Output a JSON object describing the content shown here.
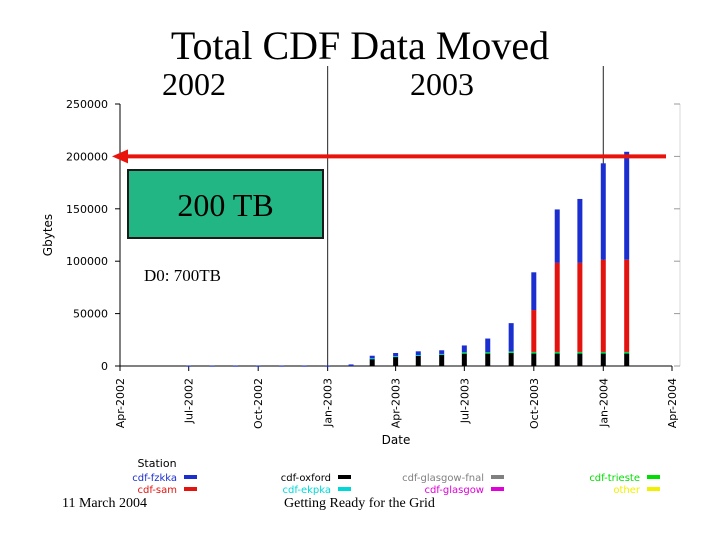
{
  "slide": {
    "title": "Total CDF Data Moved",
    "year_left": "2002",
    "year_right": "2003",
    "box_label": "200 TB",
    "d0_note": "D0: 700TB",
    "footer_date": "11 March 2004",
    "footer_title": "Getting Ready for the Grid",
    "arrow_color": "#e8140c",
    "box_color": "#23b685"
  },
  "chart_data": {
    "type": "bar",
    "stacked": true,
    "xlabel": "Date",
    "ylabel": "Gbytes",
    "ylim": [
      0,
      250000
    ],
    "yticks": [
      0,
      50000,
      100000,
      150000,
      200000,
      250000
    ],
    "ytick_labels": [
      "0",
      "50000",
      "100000",
      "150000",
      "200000",
      "250000"
    ],
    "xlim": [
      "2002-04-01",
      "2004-04-01"
    ],
    "xticks": [
      "2002-04-01",
      "2002-07-01",
      "2002-10-01",
      "2003-01-01",
      "2003-04-01",
      "2003-07-01",
      "2003-10-01",
      "2004-01-01",
      "2004-04-01"
    ],
    "xtick_labels": [
      "Apr-2002",
      "Jul-2002",
      "Oct-2002",
      "Jan-2003",
      "Apr-2003",
      "Jul-2003",
      "Oct-2003",
      "Jan-2004",
      "Apr-2004"
    ],
    "reference_line": {
      "y": 200000
    },
    "year_dividers": [
      "2003-01-01",
      "2004-01-01"
    ],
    "grid": false,
    "legend_title": "Station",
    "legend_position": "bottom",
    "dates": [
      "2002-07-01",
      "2002-08-01",
      "2002-09-01",
      "2002-10-01",
      "2002-11-01",
      "2002-12-01",
      "2003-01-01",
      "2003-02-01",
      "2003-03-01",
      "2003-04-01",
      "2003-05-01",
      "2003-06-01",
      "2003-07-01",
      "2003-08-01",
      "2003-09-01",
      "2003-10-01",
      "2003-11-01",
      "2003-12-01",
      "2004-01-01",
      "2004-02-01"
    ],
    "series": [
      {
        "name": "cdf-fzkka",
        "color": "#1b2fd0",
        "values": [
          300,
          300,
          300,
          300,
          300,
          300,
          300,
          1500,
          2500,
          3000,
          3500,
          3500,
          6500,
          13000,
          27000,
          36000,
          51000,
          61000,
          92000,
          103000
        ]
      },
      {
        "name": "cdf-sam",
        "color": "#e3140f",
        "values": [
          0,
          0,
          0,
          0,
          0,
          0,
          0,
          0,
          0,
          0,
          0,
          0,
          0,
          0,
          0,
          40000,
          85000,
          85000,
          88000,
          88000
        ]
      },
      {
        "name": "cdf-oxford",
        "color": "#000000",
        "values": [
          0,
          0,
          0,
          0,
          0,
          0,
          0,
          0,
          7000,
          9000,
          10000,
          11000,
          12000,
          12000,
          12500,
          12000,
          12000,
          12000,
          12000,
          12000
        ]
      },
      {
        "name": "cdf-ekpka",
        "color": "#00d8d8",
        "values": [
          0,
          0,
          0,
          0,
          0,
          0,
          0,
          0,
          300,
          400,
          500,
          500,
          600,
          700,
          800,
          800,
          800,
          800,
          800,
          800
        ]
      },
      {
        "name": "cdf-glasgow-fnal",
        "color": "#808080",
        "values": [
          0,
          0,
          0,
          0,
          0,
          0,
          0,
          0,
          0,
          0,
          0,
          0,
          0,
          0,
          0,
          0,
          0,
          0,
          0,
          0
        ]
      },
      {
        "name": "cdf-glasgow",
        "color": "#e000d8",
        "values": [
          0,
          0,
          0,
          0,
          0,
          0,
          0,
          0,
          0,
          0,
          0,
          0,
          0,
          0,
          0,
          0,
          0,
          0,
          0,
          0
        ]
      },
      {
        "name": "cdf-trieste",
        "color": "#00dd00",
        "values": [
          0,
          0,
          0,
          0,
          0,
          0,
          0,
          0,
          0,
          0,
          0,
          0,
          500,
          500,
          600,
          600,
          600,
          600,
          600,
          600
        ]
      },
      {
        "name": "other",
        "color": "#f0f000",
        "values": [
          0,
          0,
          0,
          0,
          0,
          0,
          0,
          0,
          0,
          0,
          0,
          0,
          0,
          0,
          0,
          0,
          0,
          0,
          0,
          0
        ]
      }
    ]
  }
}
